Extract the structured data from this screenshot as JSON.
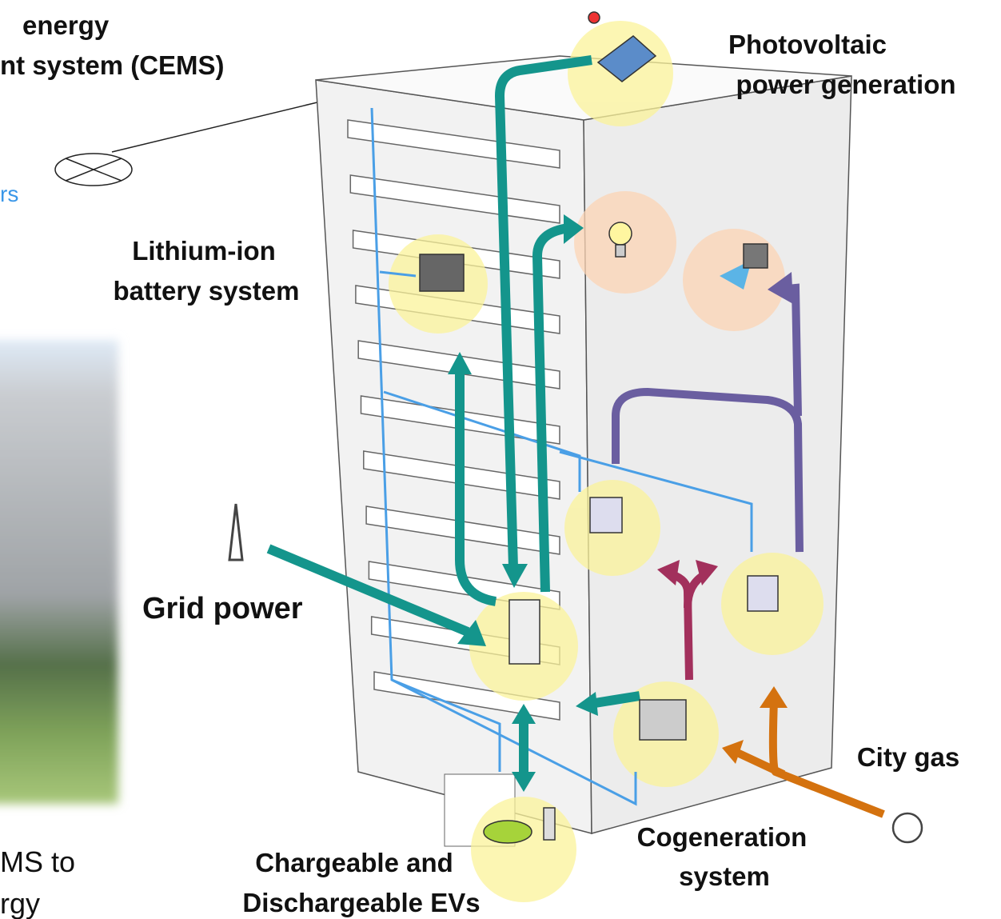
{
  "labels": {
    "cems": [
      "energy",
      "nt system (CEMS)"
    ],
    "sensors": "rs",
    "photovoltaic": [
      "Photovoltaic",
      "power generation"
    ],
    "battery": [
      "Lithium-ion",
      "battery system"
    ],
    "grid": "Grid power",
    "city_gas": "City gas",
    "cogeneration": [
      "Cogeneration",
      "system"
    ],
    "ev": [
      "Chargeable and",
      "Dischargeable EVs"
    ],
    "caption": [
      "MS to",
      "rgy"
    ]
  }
}
